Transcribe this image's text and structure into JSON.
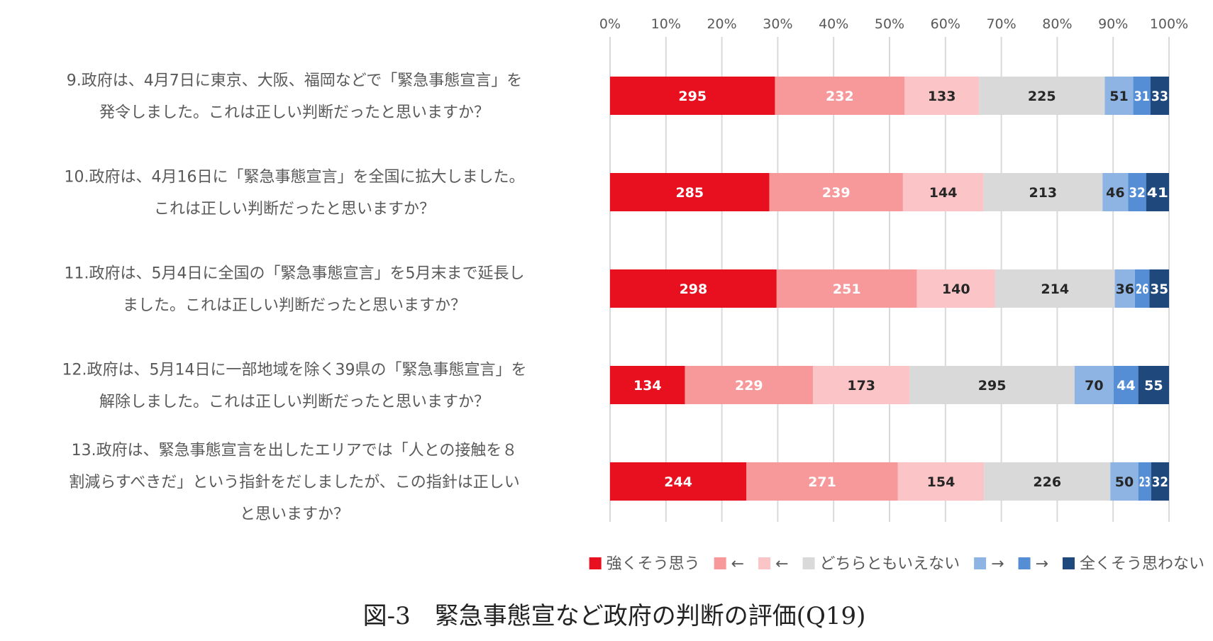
{
  "caption": "図-3　緊急事態宣など政府の判断の評価(Q19)",
  "chart_data": {
    "type": "bar",
    "orientation": "horizontal",
    "stacked": "percent",
    "x_ticks": [
      "0%",
      "10%",
      "20%",
      "30%",
      "40%",
      "50%",
      "60%",
      "70%",
      "80%",
      "90%",
      "100%"
    ],
    "grid": true,
    "legend_position": "bottom",
    "categories": [
      [
        "9.政府は、4月7日に東京、大阪、福岡などで「緊急事態宣言」を",
        "発令しました。これは正しい判断だったと思いますか？"
      ],
      [
        "10.政府は、4月16日に「緊急事態宣言」を全国に拡大しました。",
        "これは正しい判断だったと思いますか？"
      ],
      [
        "11.政府は、5月4日に全国の「緊急事態宣言」を5月末まで延長し",
        "ました。これは正しい判断だったと思いますか？"
      ],
      [
        "12.政府は、5月14日に一部地域を除く39県の「緊急事態宣言」を",
        "解除しました。これは正しい判断だったと思いますか？"
      ],
      [
        "13.政府は、緊急事態宣言を出したエリアでは「人との接触を８",
        "割減らすべきだ」という指針をだしましたが、この指針は正しい",
        "と思いますか？"
      ]
    ],
    "series": [
      {
        "name": "強くそう思う",
        "color": "#E8101E",
        "label_color": "#ffffff",
        "values": [
          295,
          285,
          298,
          134,
          244
        ]
      },
      {
        "name": "←",
        "color": "#F7999B",
        "label_color": "#ffffff",
        "values": [
          232,
          239,
          251,
          229,
          271
        ]
      },
      {
        "name": "←",
        "color": "#FBC4C6",
        "label_color": "#262626",
        "values": [
          133,
          144,
          140,
          173,
          154
        ]
      },
      {
        "name": "どちらともいえない",
        "color": "#D9D9D9",
        "label_color": "#262626",
        "values": [
          225,
          213,
          214,
          295,
          226
        ]
      },
      {
        "name": "→",
        "color": "#8EB4E3",
        "label_color": "#262626",
        "values": [
          51,
          46,
          36,
          70,
          50
        ]
      },
      {
        "name": "→",
        "color": "#558ED5",
        "label_color": "#ffffff",
        "values": [
          31,
          32,
          26,
          44,
          23
        ]
      },
      {
        "name": "全くそう思わない",
        "color": "#1F497D",
        "label_color": "#ffffff",
        "values": [
          33,
          41,
          35,
          55,
          32
        ]
      }
    ]
  }
}
